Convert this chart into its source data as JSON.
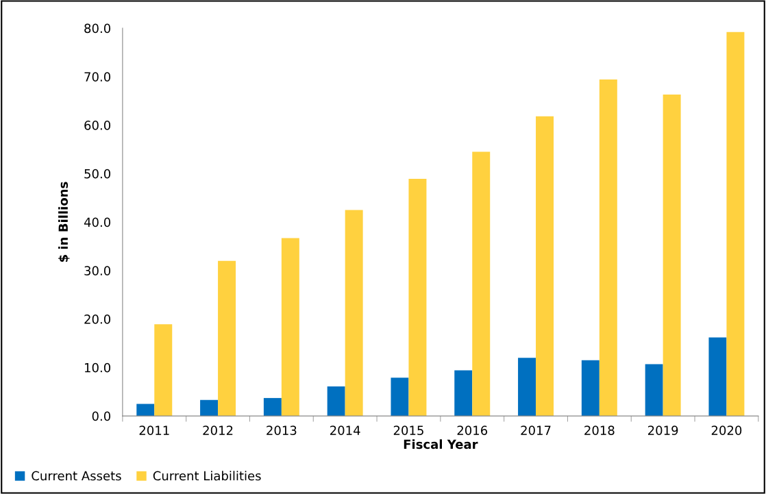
{
  "chart_data": {
    "type": "bar",
    "xlabel": "Fiscal Year",
    "ylabel": "$ in Billions",
    "categories": [
      "2011",
      "2012",
      "2013",
      "2014",
      "2015",
      "2016",
      "2017",
      "2018",
      "2019",
      "2020"
    ],
    "series": [
      {
        "name": "Current Assets",
        "color": "#0070c0",
        "values": [
          2.5,
          3.3,
          3.7,
          6.1,
          7.9,
          9.4,
          12.0,
          11.5,
          10.7,
          16.2
        ]
      },
      {
        "name": "Current Liabilities",
        "color": "#ffd13f",
        "values": [
          18.9,
          32.0,
          36.7,
          42.5,
          48.9,
          54.5,
          61.8,
          69.4,
          66.3,
          79.2
        ]
      }
    ],
    "ylim": [
      0,
      80
    ],
    "yticks": [
      {
        "value": 0,
        "label": "0.0"
      },
      {
        "value": 10,
        "label": "10.0"
      },
      {
        "value": 20,
        "label": "20.0"
      },
      {
        "value": 30,
        "label": "30.0"
      },
      {
        "value": 40,
        "label": "40.0"
      },
      {
        "value": 50,
        "label": "50.0"
      },
      {
        "value": 60,
        "label": "60.0"
      },
      {
        "value": 70,
        "label": "70.0"
      },
      {
        "value": 80,
        "label": "80.0"
      }
    ],
    "grid": false,
    "legend": "bottom left"
  }
}
